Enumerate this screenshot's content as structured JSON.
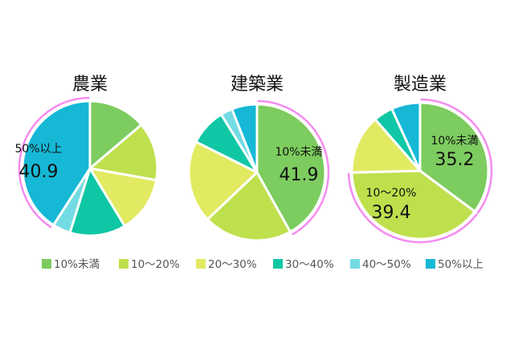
{
  "chart_data": [
    {
      "type": "pie",
      "title": "農業",
      "categories": [
        "10%未満",
        "10〜20%",
        "20〜30%",
        "30〜40%",
        "40〜50%",
        "50%以上"
      ],
      "values": [
        13.8,
        14.0,
        13.6,
        13.4,
        4.3,
        40.9
      ],
      "highlight": {
        "category": "50%以上",
        "label": "50%以上",
        "value": "40.9"
      }
    },
    {
      "type": "pie",
      "title": "建築業",
      "categories": [
        "10%未満",
        "10〜20%",
        "20〜30%",
        "30〜40%",
        "40〜50%",
        "50%以上"
      ],
      "values": [
        41.9,
        21.0,
        19.5,
        8.8,
        2.8,
        6.0
      ],
      "highlight": {
        "category": "10%未満",
        "label": "10%未満",
        "value": "41.9"
      }
    },
    {
      "type": "pie",
      "title": "製造業",
      "categories": [
        "10%未満",
        "10〜20%",
        "20〜30%",
        "30〜40%",
        "40〜50%",
        "50%以上"
      ],
      "values": [
        35.2,
        39.4,
        14.0,
        4.6,
        0,
        6.8
      ],
      "highlight": {
        "category": "10〜20%",
        "label": "10〜20%",
        "value": "39.4"
      },
      "highlight_extra": {
        "category": "10%未満",
        "label": "10%未満",
        "value": "35.2"
      }
    }
  ],
  "legend": {
    "items": [
      {
        "label": "10%未満",
        "color": "#7dcc5f"
      },
      {
        "label": "10〜20%",
        "color": "#bfe04d"
      },
      {
        "label": "20〜30%",
        "color": "#e2ea62"
      },
      {
        "label": "30〜40%",
        "color": "#10c7a5"
      },
      {
        "label": "40〜50%",
        "color": "#73dbe3"
      },
      {
        "label": "50%以上",
        "color": "#16b8d6"
      }
    ]
  },
  "colors": {
    "slice_border": "#ffffff",
    "highlight_arc": "#f58cf0",
    "text": "#111111"
  }
}
